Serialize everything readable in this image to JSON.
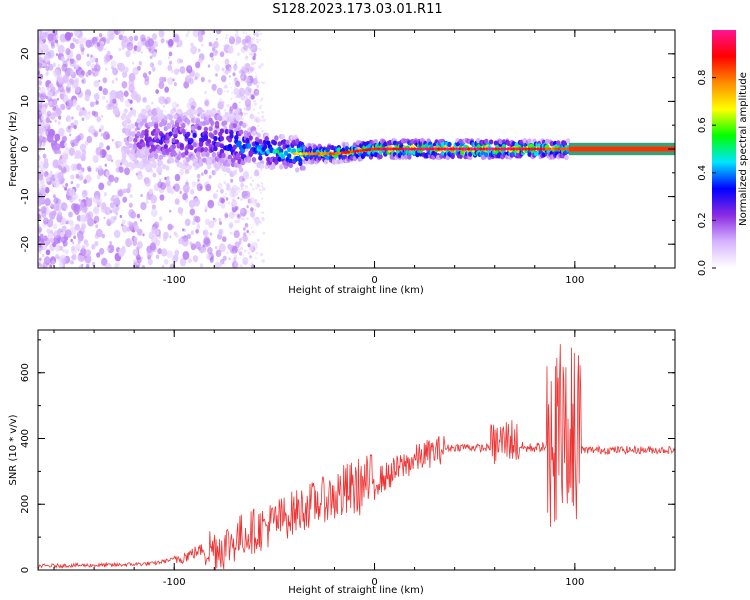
{
  "title": "S128.2023.173.03.01.R11",
  "chart_data": [
    {
      "type": "heatmap",
      "xlabel": "Height of straight line (km)",
      "ylabel": "Frequency (Hz)",
      "xlim": [
        -168,
        150
      ],
      "ylim": [
        -25,
        25
      ],
      "x_ticks": [
        -100,
        0,
        100
      ],
      "y_ticks": [
        -20,
        -10,
        0,
        10,
        20
      ],
      "colorbar": {
        "label": "Normalized spectral amplitude",
        "ticks": [
          0.0,
          0.2,
          0.4,
          0.6,
          0.8
        ],
        "range": [
          0,
          1
        ],
        "colors": [
          "#ffffff",
          "#d6b3ff",
          "#8a2be2",
          "#0000ff",
          "#00e5ff",
          "#00ff00",
          "#ffff00",
          "#ff8c00",
          "#ff0000",
          "#ff1493"
        ]
      },
      "ridge": [
        {
          "x": -120,
          "y": 2,
          "amp": 0.25
        },
        {
          "x": -100,
          "y": 2,
          "amp": 0.3
        },
        {
          "x": -80,
          "y": 2,
          "amp": 0.35
        },
        {
          "x": -60,
          "y": 0,
          "amp": 0.45
        },
        {
          "x": -40,
          "y": -1,
          "amp": 0.55
        },
        {
          "x": -20,
          "y": -1,
          "amp": 0.65
        },
        {
          "x": 0,
          "y": 0,
          "amp": 0.75
        },
        {
          "x": 20,
          "y": 0,
          "amp": 0.8
        },
        {
          "x": 40,
          "y": 0,
          "amp": 0.8
        },
        {
          "x": 60,
          "y": 0,
          "amp": 0.8
        },
        {
          "x": 80,
          "y": 0,
          "amp": 0.75
        },
        {
          "x": 96,
          "y": 0,
          "amp": 0.6
        },
        {
          "x": 150,
          "y": 0,
          "amp": 0.9
        }
      ]
    },
    {
      "type": "line",
      "xlabel": "Height of straight line (km)",
      "ylabel": "SNR (10 * v/v)",
      "xlim": [
        -168,
        150
      ],
      "ylim": [
        0,
        730
      ],
      "x_ticks": [
        -100,
        0,
        100
      ],
      "y_ticks": [
        0,
        200,
        400,
        600
      ],
      "color": "#ee3333",
      "series": [
        {
          "x": [
            -168,
            -150,
            -130,
            -110,
            -95,
            -85,
            -75,
            -65,
            -55,
            -45,
            -35,
            -25,
            -15,
            -5,
            5,
            15,
            25,
            35,
            45,
            55,
            62,
            68,
            75,
            85,
            90,
            94,
            98,
            102,
            120,
            150
          ],
          "values": [
            12,
            14,
            15,
            20,
            40,
            65,
            70,
            110,
            130,
            160,
            190,
            215,
            235,
            260,
            280,
            320,
            350,
            370,
            375,
            370,
            385,
            400,
            370,
            375,
            380,
            420,
            390,
            365,
            365,
            365
          ]
        }
      ]
    }
  ]
}
